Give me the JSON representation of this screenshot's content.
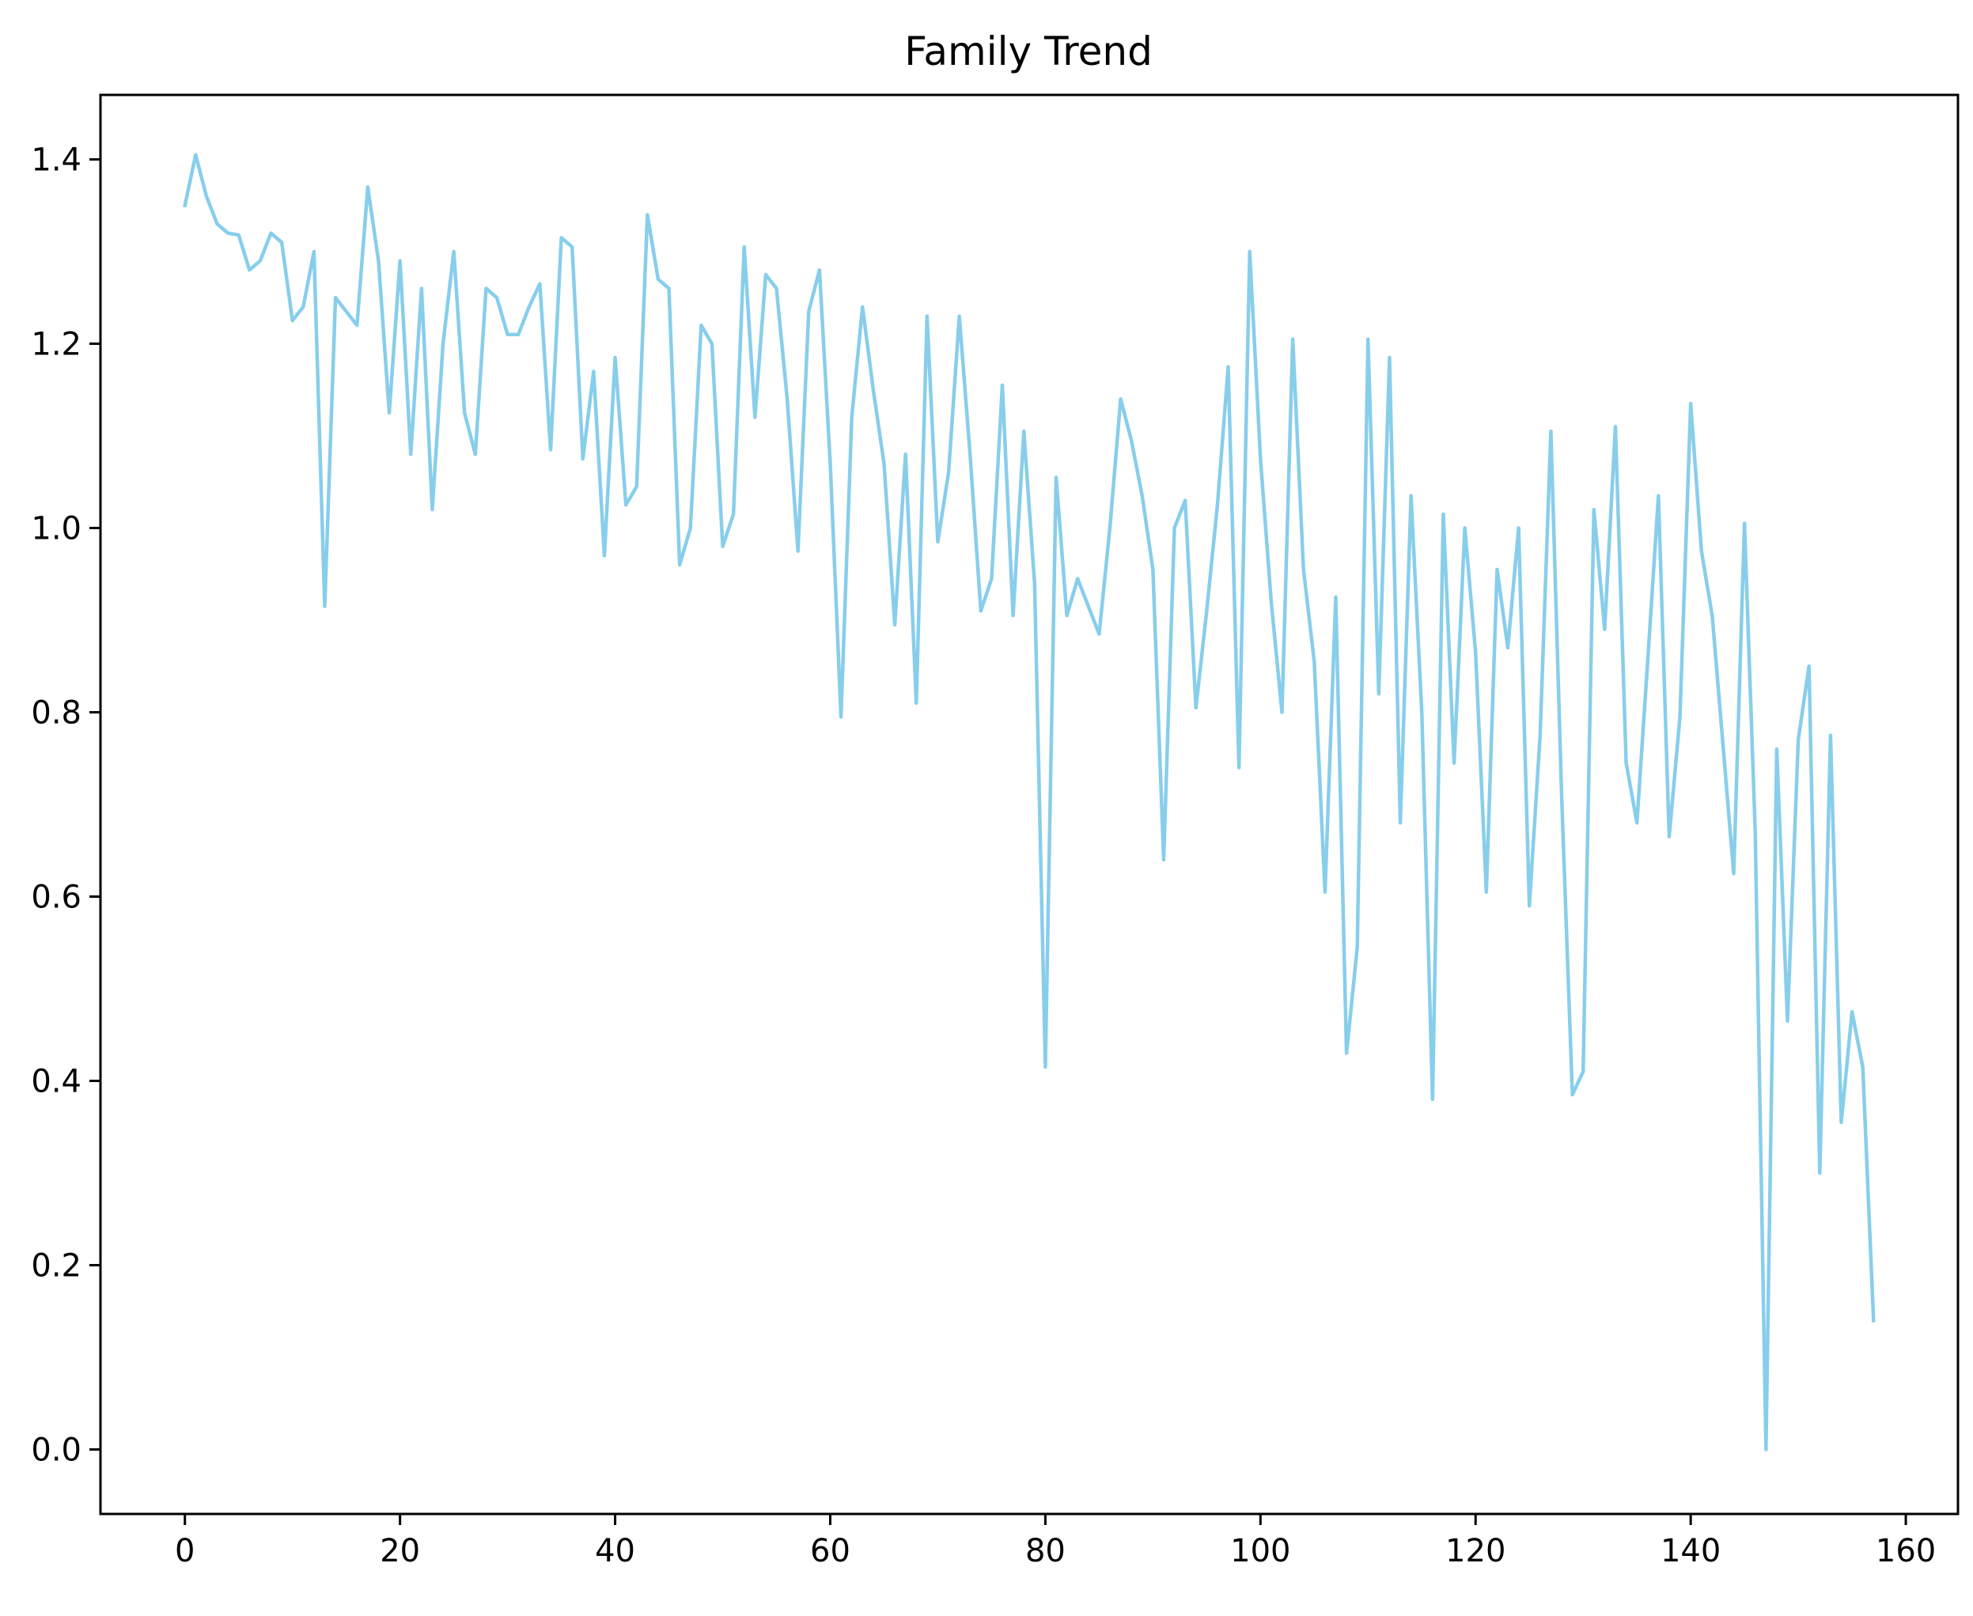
{
  "chart_data": {
    "type": "line",
    "title": "Family Trend",
    "xlabel": "",
    "ylabel": "",
    "xlim": [
      -7.85,
      164.85
    ],
    "ylim": [
      -0.07,
      1.47
    ],
    "xticks": [
      0,
      20,
      40,
      60,
      80,
      100,
      120,
      140,
      160
    ],
    "xtick_labels": [
      "0",
      "20",
      "40",
      "60",
      "80",
      "100",
      "120",
      "140",
      "160"
    ],
    "yticks": [
      0.0,
      0.2,
      0.4,
      0.6,
      0.8,
      1.0,
      1.2,
      1.4
    ],
    "ytick_labels": [
      "0.0",
      "0.2",
      "0.4",
      "0.6",
      "0.8",
      "1.0",
      "1.2",
      "1.4"
    ],
    "grid": false,
    "legend": "none",
    "line_color": "#87CEEB",
    "series": [
      {
        "x": [
          0,
          1,
          2,
          3,
          4,
          5,
          6,
          7,
          8,
          9,
          10,
          11,
          12,
          13,
          14,
          15,
          16,
          17,
          18,
          19,
          20,
          21,
          22,
          23,
          24,
          25,
          26,
          27,
          28,
          29,
          30,
          31,
          32,
          33,
          34,
          35,
          36,
          37,
          38,
          39,
          40,
          41,
          42,
          43,
          44,
          45,
          46,
          47,
          48,
          49,
          50,
          51,
          52,
          53,
          54,
          55,
          56,
          57,
          58,
          59,
          60,
          61,
          62,
          63,
          64,
          65,
          66,
          67,
          68,
          69,
          70,
          71,
          72,
          73,
          74,
          75,
          76,
          77,
          78,
          79,
          80,
          81,
          82,
          83,
          84,
          85,
          86,
          87,
          88,
          89,
          90,
          91,
          92,
          93,
          94,
          95,
          96,
          97,
          98,
          99,
          100,
          101,
          102,
          103,
          104,
          105,
          106,
          107,
          108,
          109,
          110,
          111,
          112,
          113,
          114,
          115,
          116,
          117,
          118,
          119,
          120,
          121,
          122,
          123,
          124,
          125,
          126,
          127,
          128,
          129,
          130,
          131,
          132,
          133,
          134,
          135,
          136,
          137,
          138,
          139,
          140,
          141,
          142,
          143,
          144,
          145,
          146,
          147,
          148,
          149,
          150,
          151,
          152,
          153,
          154,
          155,
          156,
          157
        ],
        "values": [
          1.35,
          1.405,
          1.36,
          1.33,
          1.32,
          1.318,
          1.28,
          1.29,
          1.32,
          1.31,
          1.225,
          1.24,
          1.3,
          0.915,
          1.25,
          1.235,
          1.22,
          1.37,
          1.29,
          1.125,
          1.29,
          1.08,
          1.26,
          1.02,
          1.2,
          1.3,
          1.125,
          1.08,
          1.26,
          1.25,
          1.21,
          1.21,
          1.24,
          1.265,
          1.085,
          1.315,
          1.305,
          1.075,
          1.17,
          0.97,
          1.185,
          1.025,
          1.045,
          1.34,
          1.27,
          1.26,
          0.96,
          1.0,
          1.22,
          1.2,
          0.98,
          1.015,
          1.305,
          1.12,
          1.275,
          1.26,
          1.14,
          0.975,
          1.235,
          1.28,
          1.07,
          0.795,
          1.12,
          1.24,
          1.15,
          1.07,
          0.895,
          1.08,
          0.81,
          1.23,
          0.985,
          1.06,
          1.23,
          1.08,
          0.91,
          0.945,
          1.155,
          0.905,
          1.105,
          0.94,
          0.415,
          1.055,
          0.905,
          0.945,
          0.915,
          0.885,
          1.0,
          1.14,
          1.095,
          1.035,
          0.955,
          0.64,
          1.0,
          1.03,
          0.805,
          0.91,
          1.025,
          1.175,
          0.74,
          1.3,
          1.075,
          0.92,
          0.8,
          1.205,
          0.955,
          0.855,
          0.605,
          0.925,
          0.43,
          0.545,
          1.205,
          0.82,
          1.185,
          0.68,
          1.035,
          0.8,
          0.38,
          1.015,
          0.745,
          1.0,
          0.865,
          0.605,
          0.955,
          0.87,
          1.0,
          0.59,
          0.775,
          1.105,
          0.71,
          0.385,
          0.41,
          1.02,
          0.89,
          1.11,
          0.745,
          0.68,
          0.855,
          1.035,
          0.665,
          0.795,
          1.135,
          0.975,
          0.905,
          0.765,
          0.625,
          1.005,
          0.67,
          0.0,
          0.76,
          0.465,
          0.77,
          0.85,
          0.3,
          0.775,
          0.355,
          0.475,
          0.415,
          0.14
        ]
      }
    ]
  }
}
